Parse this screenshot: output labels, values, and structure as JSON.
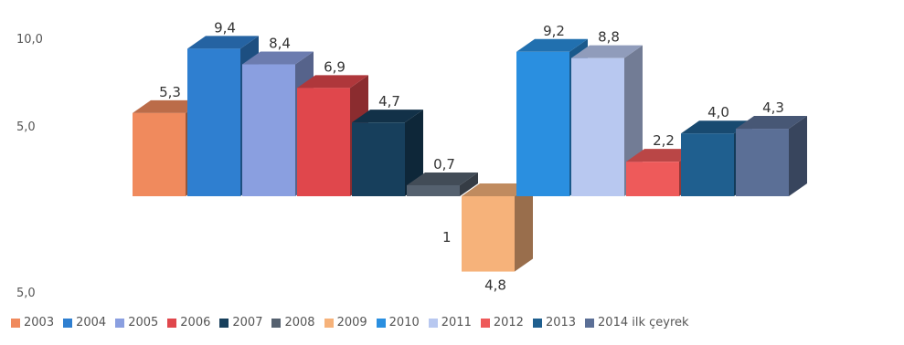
{
  "chart_data": {
    "type": "bar",
    "categories": [
      "2003",
      "2004",
      "2005",
      "2006",
      "2007",
      "2008",
      "2009",
      "2010",
      "2011",
      "2012",
      "2013",
      "2014 ilk çeyrek"
    ],
    "values": [
      5.3,
      9.4,
      8.4,
      6.9,
      4.7,
      0.7,
      -4.8,
      9.2,
      8.8,
      2.2,
      4.0,
      4.3
    ],
    "data_labels": [
      "5,3",
      "9,4",
      "8,4",
      "6,9",
      "4,7",
      "0,7",
      "4,8",
      "9,2",
      "8,8",
      "2,2",
      "4,0",
      "4,3"
    ],
    "yticks": [
      {
        "value": 10,
        "label": "10,0"
      },
      {
        "value": 5,
        "label": "5,0"
      },
      {
        "value": -5,
        "label": "5,0"
      }
    ],
    "ylim": [
      -5,
      10
    ],
    "grid": false,
    "three_d": true,
    "legend_position": "bottom",
    "colors": [
      "#f08a5d",
      "#2f7fd0",
      "#8a9fe0",
      "#e0474c",
      "#173f5c",
      "#55616f",
      "#f6b27a",
      "#2a8fe0",
      "#b8c8f0",
      "#ee5a5a",
      "#1f5f8f",
      "#5b6f96"
    ],
    "title": "",
    "xlabel": "",
    "ylabel": ""
  },
  "annotations": [
    {
      "text": "1"
    }
  ]
}
